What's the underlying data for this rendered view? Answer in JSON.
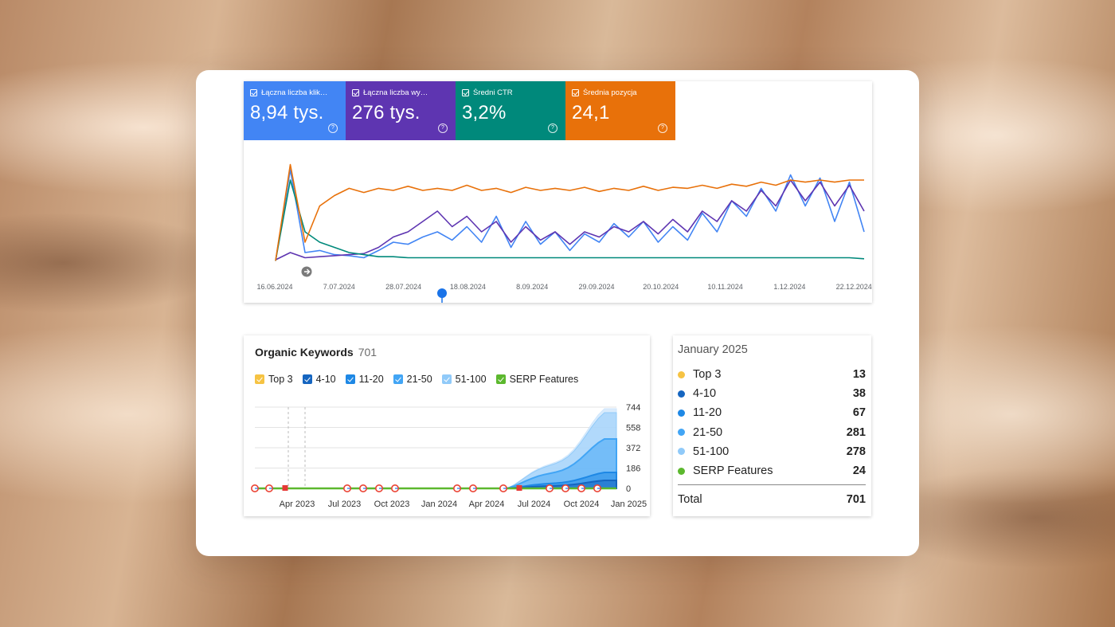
{
  "gsc": {
    "metrics": [
      {
        "label": "Łączna liczba klik…",
        "value": "8,94 tys.",
        "color": "#4285f4"
      },
      {
        "label": "Łączna liczba wy…",
        "value": "276 tys.",
        "color": "#5e35b1"
      },
      {
        "label": "Średni CTR",
        "value": "3,2%",
        "color": "#00897b"
      },
      {
        "label": "Średnia pozycja",
        "value": "24,1",
        "color": "#e8710a"
      }
    ],
    "help_glyph": "?",
    "x_ticks": [
      "16.06.2024",
      "7.07.2024",
      "28.07.2024",
      "18.08.2024",
      "8.09.2024",
      "29.09.2024",
      "20.10.2024",
      "10.11.2024",
      "1.12.2024",
      "22.12.2024"
    ]
  },
  "chart_data": [
    {
      "type": "line",
      "x_range": [
        "16.06.2024",
        "31.12.2024"
      ],
      "x_ticks": [
        "16.06.2024",
        "7.07.2024",
        "28.07.2024",
        "18.08.2024",
        "8.09.2024",
        "29.09.2024",
        "20.10.2024",
        "10.11.2024",
        "1.12.2024",
        "22.12.2024"
      ],
      "y_axis_visible": false,
      "series": [
        {
          "name": "Łączna liczba klik…",
          "color": "#4285f4",
          "trend": "low early, rising to highs in late December",
          "values": [
            0.02,
            0.9,
            0.1,
            0.12,
            0.08,
            0.07,
            0.05,
            0.12,
            0.2,
            0.18,
            0.25,
            0.3,
            0.22,
            0.35,
            0.2,
            0.45,
            0.15,
            0.4,
            0.18,
            0.3,
            0.12,
            0.28,
            0.2,
            0.38,
            0.25,
            0.4,
            0.2,
            0.35,
            0.22,
            0.48,
            0.3,
            0.6,
            0.45,
            0.72,
            0.5,
            0.85,
            0.55,
            0.82,
            0.4,
            0.78,
            0.3
          ]
        },
        {
          "name": "Łączna liczba wy…",
          "color": "#5e35b1",
          "trend": "low early, rising with weekly oscillation",
          "values": [
            0.03,
            0.1,
            0.05,
            0.06,
            0.07,
            0.08,
            0.09,
            0.15,
            0.25,
            0.3,
            0.4,
            0.5,
            0.35,
            0.45,
            0.3,
            0.4,
            0.2,
            0.35,
            0.22,
            0.3,
            0.18,
            0.3,
            0.25,
            0.35,
            0.3,
            0.4,
            0.28,
            0.42,
            0.3,
            0.5,
            0.4,
            0.6,
            0.5,
            0.7,
            0.55,
            0.8,
            0.6,
            0.78,
            0.55,
            0.75,
            0.5
          ]
        },
        {
          "name": "Średni CTR",
          "color": "#00897b",
          "trend": "early spike then flat low",
          "values": [
            0.02,
            0.8,
            0.3,
            0.2,
            0.15,
            0.1,
            0.08,
            0.06,
            0.06,
            0.05,
            0.05,
            0.05,
            0.05,
            0.05,
            0.05,
            0.05,
            0.05,
            0.05,
            0.05,
            0.05,
            0.05,
            0.05,
            0.05,
            0.05,
            0.05,
            0.05,
            0.05,
            0.05,
            0.05,
            0.05,
            0.05,
            0.05,
            0.05,
            0.05,
            0.05,
            0.05,
            0.05,
            0.05,
            0.05,
            0.05,
            0.04
          ]
        },
        {
          "name": "Średnia pozycja",
          "color": "#e8710a",
          "trend": "early spike then high plateau",
          "values": [
            0.02,
            0.95,
            0.2,
            0.55,
            0.65,
            0.72,
            0.68,
            0.72,
            0.7,
            0.74,
            0.7,
            0.72,
            0.7,
            0.75,
            0.7,
            0.72,
            0.68,
            0.73,
            0.7,
            0.72,
            0.7,
            0.73,
            0.69,
            0.72,
            0.7,
            0.74,
            0.7,
            0.73,
            0.72,
            0.75,
            0.72,
            0.76,
            0.74,
            0.78,
            0.75,
            0.8,
            0.78,
            0.8,
            0.78,
            0.8,
            0.8
          ]
        }
      ]
    },
    {
      "type": "area",
      "title": "Organic Keywords",
      "x_ticks": [
        "Apr 2023",
        "Jul 2023",
        "Oct 2023",
        "Jan 2024",
        "Apr 2024",
        "Jul 2024",
        "Oct 2024",
        "Jan 2025"
      ],
      "y_ticks": [
        744,
        558,
        372,
        186,
        0
      ],
      "ylim": [
        0,
        744
      ],
      "series": [
        {
          "name": "Top 3",
          "color": "#f6c343"
        },
        {
          "name": "4-10",
          "color": "#1565c0"
        },
        {
          "name": "11-20",
          "color": "#1e88e5"
        },
        {
          "name": "21-50",
          "color": "#42a5f5"
        },
        {
          "name": "51-100",
          "color": "#90caf9"
        },
        {
          "name": "SERP Features",
          "color": "#5cb82e"
        }
      ],
      "total_trend": "near 0 until Apr 2024, then rising to ~701 by Jan 2025"
    }
  ],
  "keywords": {
    "title": "Organic Keywords",
    "count": "701",
    "legend": [
      {
        "label": "Top 3",
        "color": "#f6c343"
      },
      {
        "label": "4-10",
        "color": "#1565c0"
      },
      {
        "label": "11-20",
        "color": "#1e88e5"
      },
      {
        "label": "21-50",
        "color": "#42a5f5"
      },
      {
        "label": "51-100",
        "color": "#90caf9"
      },
      {
        "label": "SERP Features",
        "color": "#5cb82e"
      }
    ],
    "y_ticks": [
      "744",
      "558",
      "372",
      "186",
      "0"
    ],
    "x_ticks": [
      "Apr 2023",
      "Jul 2023",
      "Oct 2023",
      "Jan 2024",
      "Apr 2024",
      "Jul 2024",
      "Oct 2024",
      "Jan 2025"
    ]
  },
  "summary": {
    "month": "January 2025",
    "rows": [
      {
        "label": "Top 3",
        "value": "13",
        "color": "#f6c343"
      },
      {
        "label": "4-10",
        "value": "38",
        "color": "#1565c0"
      },
      {
        "label": "11-20",
        "value": "67",
        "color": "#1e88e5"
      },
      {
        "label": "21-50",
        "value": "281",
        "color": "#42a5f5"
      },
      {
        "label": "51-100",
        "value": "278",
        "color": "#90caf9"
      },
      {
        "label": "SERP Features",
        "value": "24",
        "color": "#5cb82e"
      }
    ],
    "total_label": "Total",
    "total_value": "701"
  }
}
